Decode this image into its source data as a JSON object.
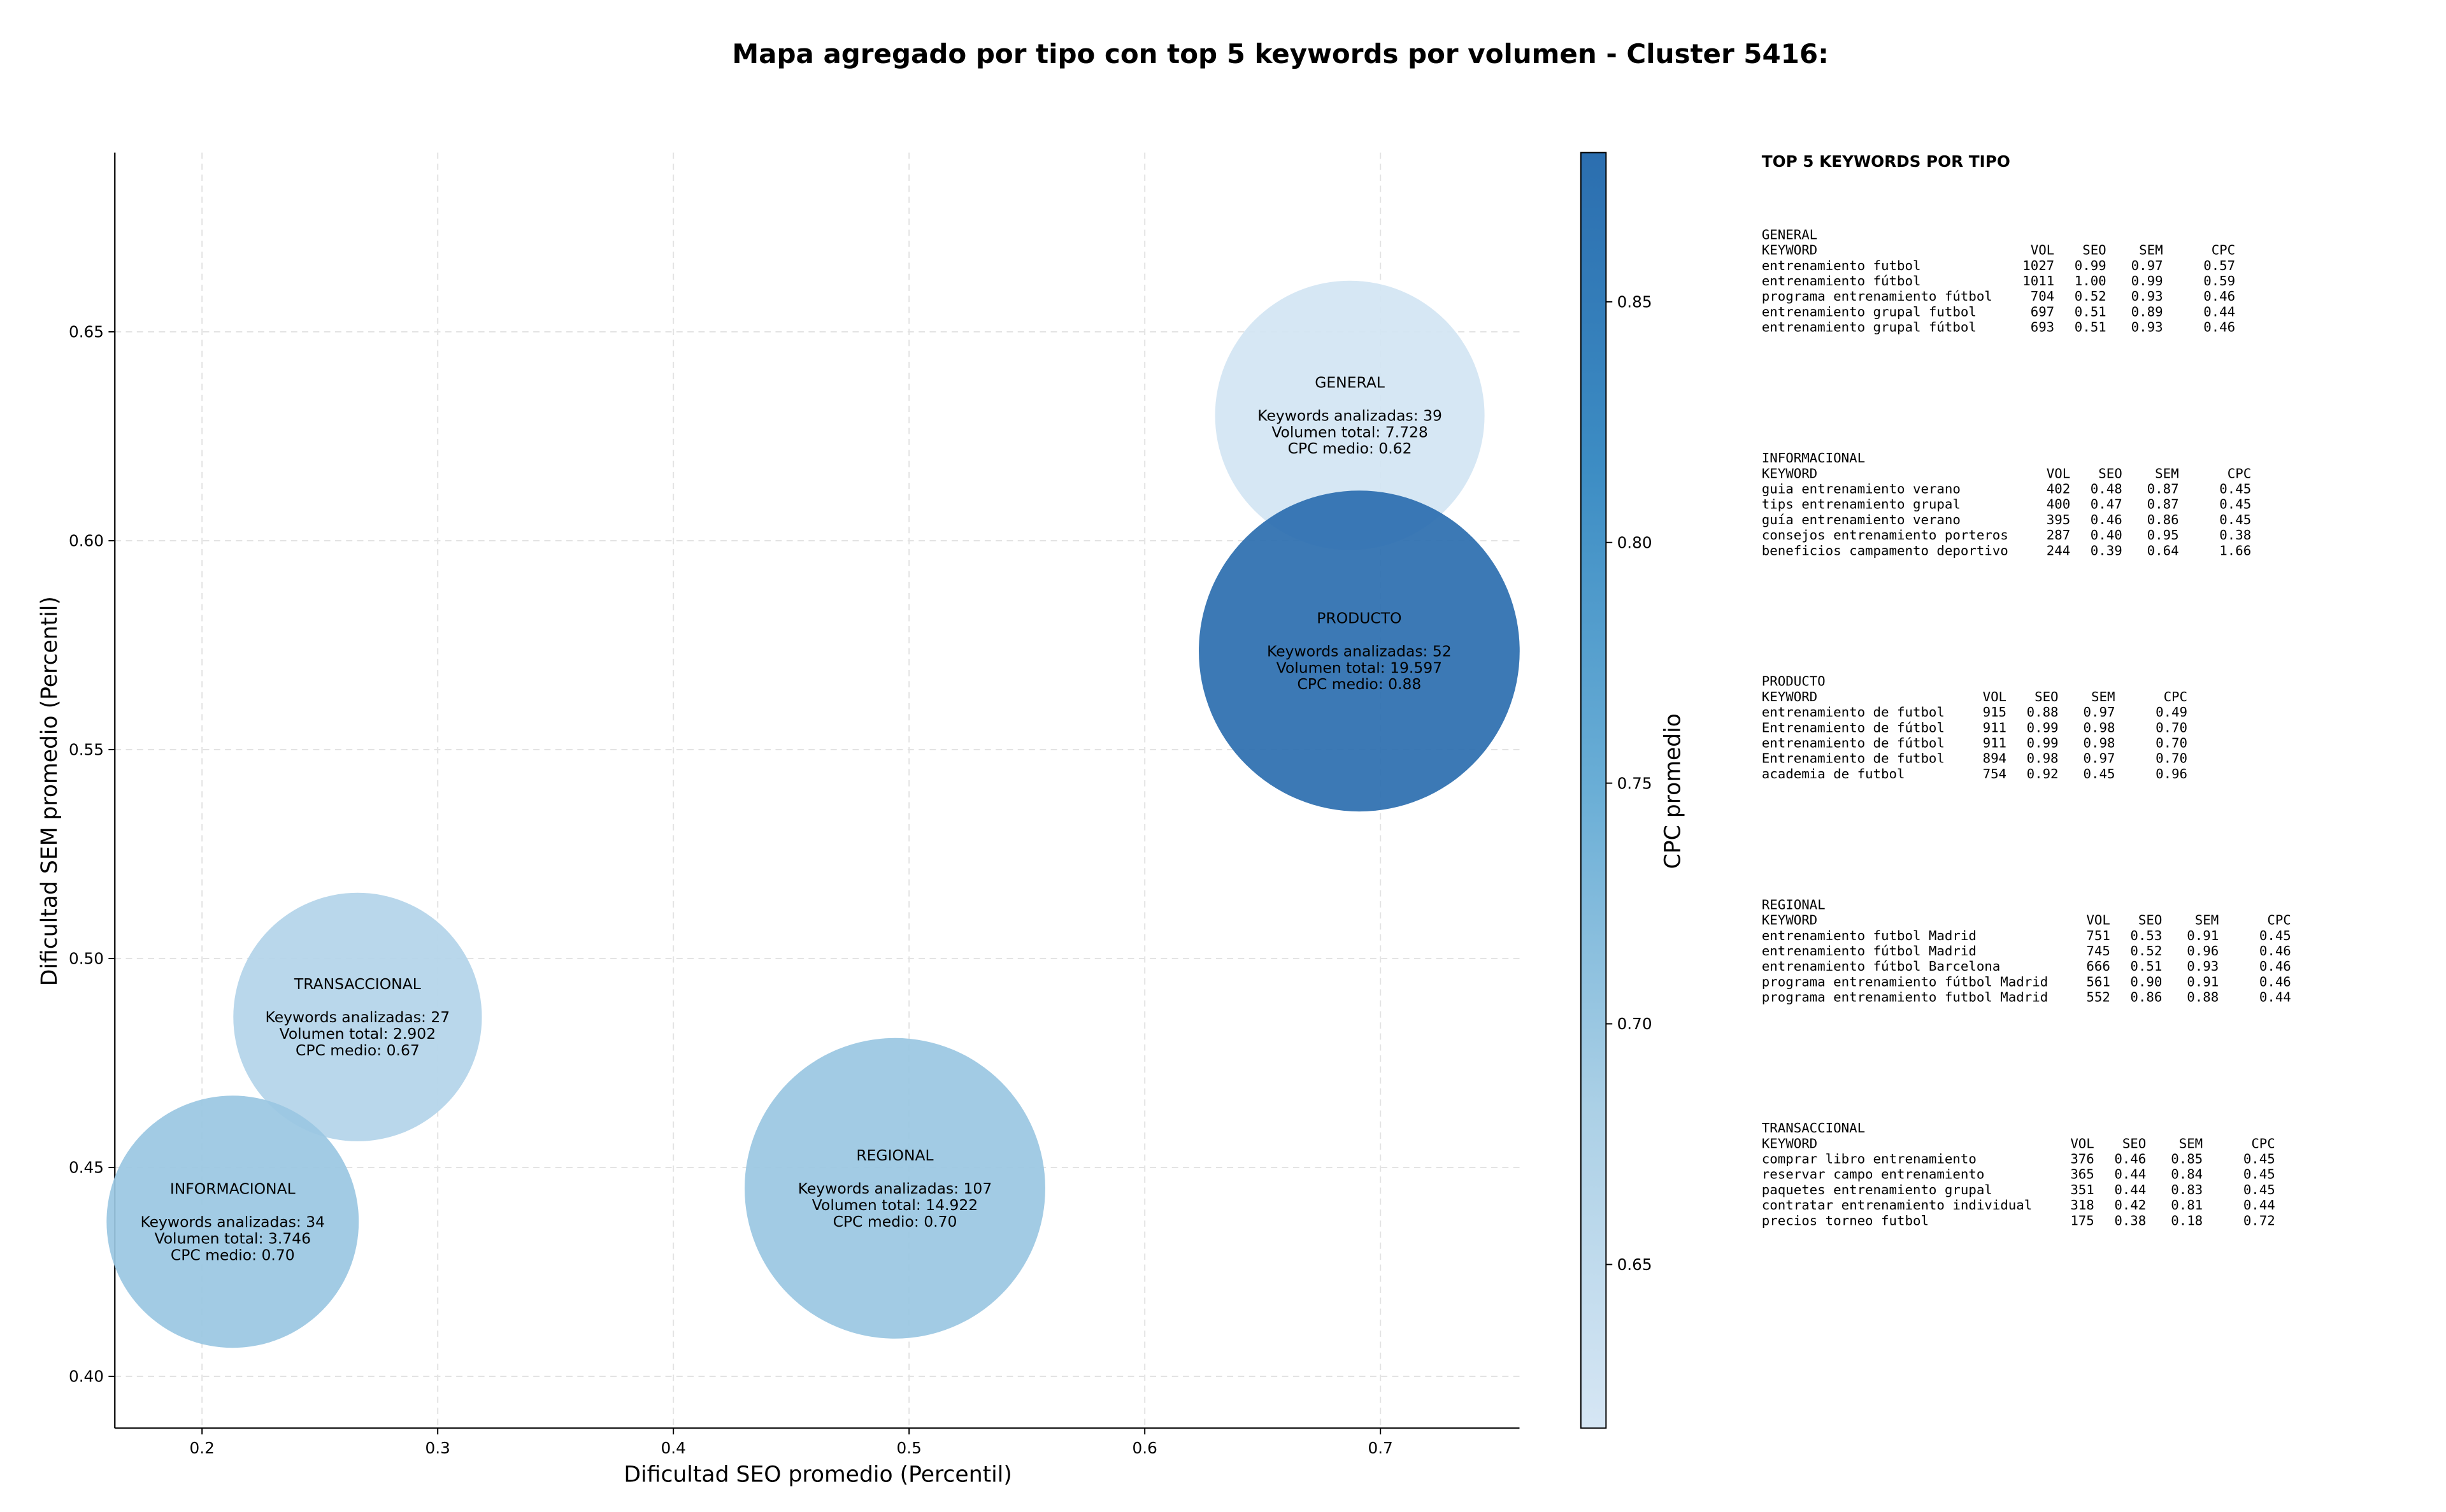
{
  "chart_data": {
    "type": "bubble",
    "title": "Mapa agregado por tipo con top 5 keywords por volumen - Cluster 5416:",
    "xlabel": "Dificultad SEO promedio (Percentil)",
    "ylabel": "Dificultad SEM promedio (Percentil)",
    "colorbar_label": "CPC promedio",
    "x": [
      0.687,
      0.691,
      0.266,
      0.213,
      0.494
    ],
    "y": [
      0.63,
      0.5736,
      0.486,
      0.437,
      0.445
    ],
    "size": [
      7728,
      19597,
      2902,
      3746,
      14922
    ],
    "color_values": [
      0.62,
      0.88,
      0.67,
      0.7,
      0.7
    ],
    "bubble_labels": [
      [
        "GENERAL",
        "Keywords analizadas: 39",
        "Volumen total: 7.728",
        "CPC medio: 0.62"
      ],
      [
        "PRODUCTO",
        "Keywords analizadas: 52",
        "Volumen total: 19.597",
        "CPC medio: 0.88"
      ],
      [
        "TRANSACCIONAL",
        "Keywords analizadas: 27",
        "Volumen total: 2.902",
        "CPC medio: 0.67"
      ],
      [
        "INFORMACIONAL",
        "Keywords analizadas: 34",
        "Volumen total: 3.746",
        "CPC medio: 0.70"
      ],
      [
        "REGIONAL",
        "Keywords analizadas: 107",
        "Volumen total: 14.922",
        "CPC medio: 0.70"
      ]
    ],
    "xlim": [
      0.163,
      0.759
    ],
    "xticks": [
      0.2,
      0.3,
      0.4,
      0.5,
      0.6,
      0.7
    ],
    "ylim": [
      0.3876,
      0.6929
    ],
    "yticks": [
      {
        "value": 0.4,
        "label": "0.40"
      },
      0.45,
      {
        "value": 0.5,
        "label": "0.50"
      },
      0.55,
      {
        "value": 0.6,
        "label": "0.60"
      },
      0.65
    ],
    "clim": [
      0.616,
      0.881
    ],
    "cticks": [
      0.65,
      {
        "value": 0.7,
        "label": "0.70"
      },
      0.75,
      {
        "value": 0.8,
        "label": "0.80"
      },
      0.85
    ],
    "colormap": [
      "#d6e6f4",
      "#abd0e6",
      "#6aaed6",
      "#3d8dc4",
      "#2b6eaf"
    ],
    "grid": true,
    "panel": {
      "title": "TOP 5 KEYWORDS POR TIPO",
      "sections": [
        {
          "name": "GENERAL",
          "columns": [
            "KEYWORD",
            "VOL",
            "SEO",
            "SEM",
            "CPC"
          ],
          "rows": [
            [
              "entrenamiento futbol",
              "1027",
              "0.99",
              "0.97",
              "0.57"
            ],
            [
              "entrenamiento fútbol",
              "1011",
              "1.00",
              "0.99",
              "0.59"
            ],
            [
              "programa entrenamiento fútbol",
              "704",
              "0.52",
              "0.93",
              "0.46"
            ],
            [
              "entrenamiento grupal futbol",
              "697",
              "0.51",
              "0.89",
              "0.44"
            ],
            [
              "entrenamiento grupal fútbol",
              "693",
              "0.51",
              "0.93",
              "0.46"
            ]
          ]
        },
        {
          "name": "INFORMACIONAL",
          "columns": [
            "KEYWORD",
            "VOL",
            "SEO",
            "SEM",
            "CPC"
          ],
          "rows": [
            [
              "guia entrenamiento verano",
              "402",
              "0.48",
              "0.87",
              "0.45"
            ],
            [
              "tips entrenamiento grupal",
              "400",
              "0.47",
              "0.87",
              "0.45"
            ],
            [
              "guía entrenamiento verano",
              "395",
              "0.46",
              "0.86",
              "0.45"
            ],
            [
              "consejos entrenamiento porteros",
              "287",
              "0.40",
              "0.95",
              "0.38"
            ],
            [
              "beneficios campamento deportivo",
              "244",
              "0.39",
              "0.64",
              "1.66"
            ]
          ]
        },
        {
          "name": "PRODUCTO",
          "columns": [
            "KEYWORD",
            "VOL",
            "SEO",
            "SEM",
            "CPC"
          ],
          "rows": [
            [
              "entrenamiento de futbol",
              "915",
              "0.88",
              "0.97",
              "0.49"
            ],
            [
              "Entrenamiento de fútbol",
              "911",
              "0.99",
              "0.98",
              "0.70"
            ],
            [
              "entrenamiento de fútbol",
              "911",
              "0.99",
              "0.98",
              "0.70"
            ],
            [
              "Entrenamiento de futbol",
              "894",
              "0.98",
              "0.97",
              "0.70"
            ],
            [
              "academia de futbol",
              "754",
              "0.92",
              "0.45",
              "0.96"
            ]
          ]
        },
        {
          "name": "REGIONAL",
          "columns": [
            "KEYWORD",
            "VOL",
            "SEO",
            "SEM",
            "CPC"
          ],
          "rows": [
            [
              "entrenamiento futbol Madrid",
              "751",
              "0.53",
              "0.91",
              "0.45"
            ],
            [
              "entrenamiento fútbol Madrid",
              "745",
              "0.52",
              "0.96",
              "0.46"
            ],
            [
              "entrenamiento fútbol Barcelona",
              "666",
              "0.51",
              "0.93",
              "0.46"
            ],
            [
              "programa entrenamiento fútbol Madrid",
              "561",
              "0.90",
              "0.91",
              "0.46"
            ],
            [
              "programa entrenamiento futbol Madrid",
              "552",
              "0.86",
              "0.88",
              "0.44"
            ]
          ]
        },
        {
          "name": "TRANSACCIONAL",
          "columns": [
            "KEYWORD",
            "VOL",
            "SEO",
            "SEM",
            "CPC"
          ],
          "rows": [
            [
              "comprar libro entrenamiento",
              "376",
              "0.46",
              "0.85",
              "0.45"
            ],
            [
              "reservar campo entrenamiento",
              "365",
              "0.44",
              "0.84",
              "0.45"
            ],
            [
              "paquetes entrenamiento grupal",
              "351",
              "0.44",
              "0.83",
              "0.45"
            ],
            [
              "contratar entrenamiento individual",
              "318",
              "0.42",
              "0.81",
              "0.44"
            ],
            [
              "precios torneo futbol",
              "175",
              "0.38",
              "0.18",
              "0.72"
            ]
          ]
        }
      ]
    }
  }
}
